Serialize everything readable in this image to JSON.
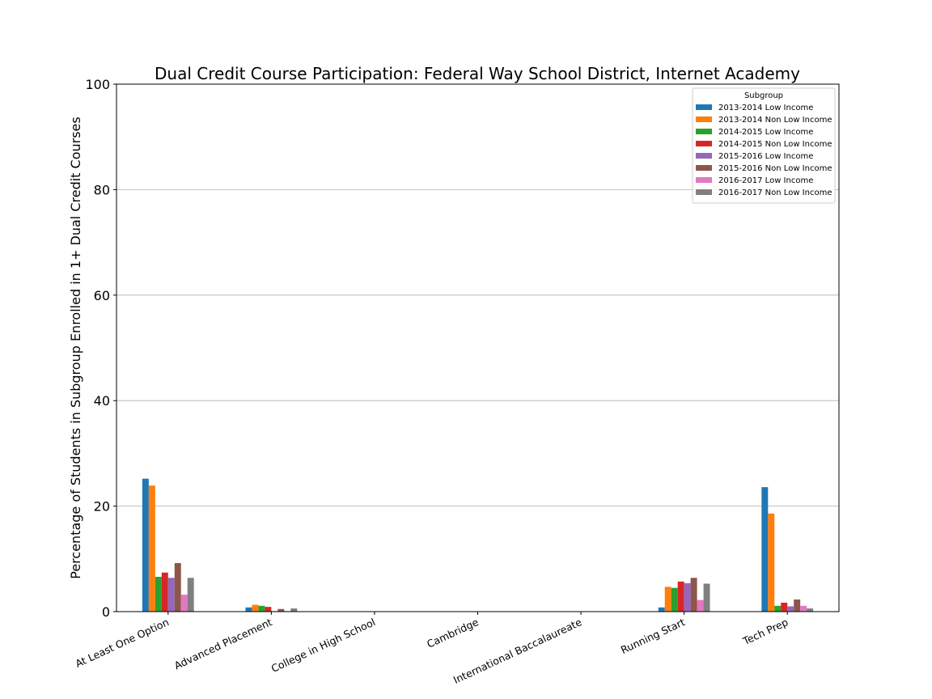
{
  "chart_data": {
    "type": "bar",
    "title": "Dual Credit Course Participation: Federal Way School District, Internet Academy",
    "xlabel": "",
    "ylabel": "Percentage of Students in Subgroup Enrolled in 1+ Dual Credit Courses",
    "ylim": [
      0,
      100
    ],
    "yticks": [
      0,
      20,
      40,
      60,
      80,
      100
    ],
    "grid": "y",
    "legend_title": "Subgroup",
    "legend_position": "top-right",
    "categories": [
      "At Least One Option",
      "Advanced Placement",
      "College in High School",
      "Cambridge",
      "International Baccalaureate",
      "Running Start",
      "Tech Prep"
    ],
    "series": [
      {
        "name": "2013-2014 Low Income",
        "color": "#1f77b4",
        "values": [
          25.2,
          0.8,
          0,
          0,
          0,
          0.8,
          23.6
        ]
      },
      {
        "name": "2013-2014 Non Low Income",
        "color": "#ff7f0e",
        "values": [
          23.9,
          1.3,
          0,
          0,
          0,
          4.7,
          18.6
        ]
      },
      {
        "name": "2014-2015 Low Income",
        "color": "#2ca02c",
        "values": [
          6.6,
          1.1,
          0,
          0,
          0,
          4.5,
          1.1
        ]
      },
      {
        "name": "2014-2015 Non Low Income",
        "color": "#d62728",
        "values": [
          7.4,
          0.9,
          0,
          0,
          0,
          5.7,
          1.7
        ]
      },
      {
        "name": "2015-2016 Low Income",
        "color": "#9467bd",
        "values": [
          6.4,
          0.1,
          0,
          0,
          0,
          5.4,
          1.0
        ]
      },
      {
        "name": "2015-2016 Non Low Income",
        "color": "#8c564b",
        "values": [
          9.2,
          0.5,
          0,
          0,
          0,
          6.4,
          2.3
        ]
      },
      {
        "name": "2016-2017 Low Income",
        "color": "#e377c2",
        "values": [
          3.2,
          0.1,
          0,
          0,
          0,
          2.2,
          1.1
        ]
      },
      {
        "name": "2016-2017 Non Low Income",
        "color": "#7f7f7f",
        "values": [
          6.4,
          0.6,
          0,
          0,
          0,
          5.3,
          0.6
        ]
      }
    ]
  }
}
